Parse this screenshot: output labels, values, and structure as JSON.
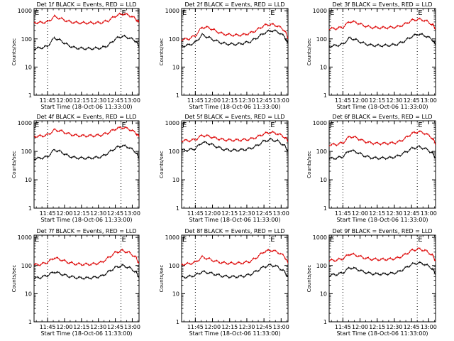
{
  "theme": {
    "events_color": "#000000",
    "lld_color": "#dd0000",
    "background": "#ffffff"
  },
  "common": {
    "xlabel": "Start Time (18-Oct-06 11:33:00)",
    "ylabel": "Counts/sec",
    "x_tick_labels": [
      "11:45",
      "12:00",
      "12:15",
      "12:30",
      "12:45",
      "13:00"
    ],
    "y_tick_labels": [
      "1",
      "10",
      "100",
      "1000"
    ],
    "marker_labels": [
      "E",
      "E"
    ]
  },
  "chart_data": [
    {
      "type": "line",
      "title": "Det 1f BLACK = Events, RED = LLD",
      "xlabel": "Start Time (18-Oct-06 11:33:00)",
      "ylabel": "Counts/sec",
      "x_unit": "minutes after 11:33:00",
      "x": [
        0,
        6,
        12,
        18,
        24,
        30,
        36,
        42,
        48,
        54,
        60,
        66,
        72,
        78,
        84,
        90,
        93
      ],
      "xlim": [
        0,
        93
      ],
      "ylim": [
        1,
        1200
      ],
      "log_y": true,
      "vlines": [
        12,
        77
      ],
      "series": [
        {
          "name": "Events",
          "color": "#000000",
          "values": [
            45,
            48,
            55,
            110,
            85,
            60,
            48,
            46,
            45,
            46,
            48,
            60,
            100,
            125,
            110,
            85,
            55
          ]
        },
        {
          "name": "LLD",
          "color": "#dd0000",
          "values": [
            380,
            380,
            400,
            620,
            520,
            420,
            380,
            370,
            370,
            370,
            380,
            450,
            650,
            780,
            700,
            520,
            380
          ]
        }
      ]
    },
    {
      "type": "line",
      "title": "Det 2f BLACK = Events, RED = LLD",
      "xlabel": "Start Time (18-Oct-06 11:33:00)",
      "ylabel": "Counts/sec",
      "x_unit": "minutes after 11:33:00",
      "x": [
        0,
        6,
        12,
        18,
        24,
        30,
        36,
        42,
        48,
        54,
        60,
        66,
        72,
        78,
        84,
        90,
        93
      ],
      "xlim": [
        0,
        93
      ],
      "ylim": [
        1,
        1200
      ],
      "log_y": true,
      "vlines": [
        12,
        77
      ],
      "series": [
        {
          "name": "Events",
          "color": "#000000",
          "values": [
            55,
            60,
            75,
            140,
            110,
            85,
            70,
            65,
            65,
            70,
            80,
            110,
            160,
            200,
            180,
            120,
            65
          ]
        },
        {
          "name": "LLD",
          "color": "#dd0000",
          "values": [
            95,
            100,
            130,
            260,
            250,
            190,
            150,
            140,
            135,
            140,
            160,
            210,
            300,
            330,
            290,
            200,
            110
          ]
        }
      ]
    },
    {
      "type": "line",
      "title": "Det 3f BLACK = Events, RED = LLD",
      "xlabel": "Start Time (18-Oct-06 11:33:00)",
      "ylabel": "Counts/sec",
      "x_unit": "minutes after 11:33:00",
      "x": [
        0,
        6,
        12,
        18,
        24,
        30,
        36,
        42,
        48,
        54,
        60,
        66,
        72,
        78,
        84,
        90,
        93
      ],
      "xlim": [
        0,
        93
      ],
      "ylim": [
        1,
        1200
      ],
      "log_y": true,
      "vlines": [
        12,
        77
      ],
      "series": [
        {
          "name": "Events",
          "color": "#000000",
          "values": [
            55,
            58,
            65,
            110,
            90,
            70,
            60,
            58,
            58,
            60,
            65,
            85,
            120,
            150,
            130,
            95,
            60
          ]
        },
        {
          "name": "LLD",
          "color": "#dd0000",
          "values": [
            230,
            235,
            260,
            420,
            380,
            300,
            260,
            250,
            250,
            255,
            270,
            330,
            450,
            500,
            450,
            330,
            230
          ]
        }
      ]
    },
    {
      "type": "line",
      "title": "Det 4f BLACK = Events, RED = LLD",
      "xlabel": "Start Time (18-Oct-06 11:33:00)",
      "ylabel": "Counts/sec",
      "x_unit": "minutes after 11:33:00",
      "x": [
        0,
        6,
        12,
        18,
        24,
        30,
        36,
        42,
        48,
        54,
        60,
        66,
        72,
        78,
        84,
        90,
        93
      ],
      "xlim": [
        0,
        93
      ],
      "ylim": [
        1,
        1200
      ],
      "log_y": true,
      "vlines": [
        12,
        77
      ],
      "series": [
        {
          "name": "Events",
          "color": "#000000",
          "values": [
            55,
            58,
            65,
            115,
            95,
            70,
            60,
            58,
            58,
            60,
            65,
            90,
            130,
            160,
            140,
            95,
            60
          ]
        },
        {
          "name": "LLD",
          "color": "#dd0000",
          "values": [
            340,
            345,
            380,
            570,
            520,
            420,
            370,
            355,
            355,
            360,
            380,
            460,
            620,
            700,
            620,
            450,
            330
          ]
        }
      ]
    },
    {
      "type": "line",
      "title": "Det 5f BLACK = Events, RED = LLD",
      "xlabel": "Start Time (18-Oct-06 11:33:00)",
      "ylabel": "Counts/sec",
      "x_unit": "minutes after 11:33:00",
      "x": [
        0,
        6,
        12,
        18,
        24,
        30,
        36,
        42,
        48,
        54,
        60,
        66,
        72,
        78,
        84,
        90,
        93
      ],
      "xlim": [
        0,
        93
      ],
      "ylim": [
        1,
        1200
      ],
      "log_y": true,
      "vlines": [
        12,
        77
      ],
      "series": [
        {
          "name": "Events",
          "color": "#000000",
          "values": [
            110,
            112,
            125,
            210,
            190,
            150,
            120,
            110,
            110,
            115,
            125,
            160,
            230,
            260,
            230,
            160,
            105
          ]
        },
        {
          "name": "LLD",
          "color": "#dd0000",
          "values": [
            240,
            240,
            260,
            370,
            340,
            290,
            260,
            250,
            250,
            255,
            270,
            320,
            420,
            470,
            420,
            320,
            240
          ]
        }
      ]
    },
    {
      "type": "line",
      "title": "Det 6f BLACK = Events, RED = LLD",
      "xlabel": "Start Time (18-Oct-06 11:33:00)",
      "ylabel": "Counts/sec",
      "x_unit": "minutes after 11:33:00",
      "x": [
        0,
        6,
        12,
        18,
        24,
        30,
        36,
        42,
        48,
        54,
        60,
        66,
        72,
        78,
        84,
        90,
        93
      ],
      "xlim": [
        0,
        93
      ],
      "ylim": [
        1,
        1200
      ],
      "log_y": true,
      "vlines": [
        12,
        77
      ],
      "series": [
        {
          "name": "Events",
          "color": "#000000",
          "values": [
            55,
            58,
            65,
            110,
            95,
            72,
            60,
            58,
            58,
            60,
            68,
            90,
            125,
            145,
            125,
            90,
            60
          ]
        },
        {
          "name": "LLD",
          "color": "#dd0000",
          "values": [
            170,
            175,
            200,
            340,
            300,
            230,
            200,
            190,
            190,
            195,
            210,
            280,
            420,
            500,
            430,
            300,
            190
          ]
        }
      ]
    },
    {
      "type": "line",
      "title": "Det 7f BLACK = Events, RED = LLD",
      "xlabel": "Start Time (18-Oct-06 11:33:00)",
      "ylabel": "Counts/sec",
      "x_unit": "minutes after 11:33:00",
      "x": [
        0,
        6,
        12,
        18,
        24,
        30,
        36,
        42,
        48,
        54,
        60,
        66,
        72,
        78,
        84,
        90,
        93
      ],
      "xlim": [
        0,
        93
      ],
      "ylim": [
        1,
        1200
      ],
      "log_y": true,
      "vlines": [
        12,
        77
      ],
      "series": [
        {
          "name": "Events",
          "color": "#000000",
          "values": [
            35,
            38,
            45,
            60,
            50,
            42,
            38,
            36,
            36,
            38,
            42,
            60,
            85,
            100,
            85,
            60,
            40
          ]
        },
        {
          "name": "LLD",
          "color": "#dd0000",
          "values": [
            105,
            110,
            130,
            190,
            160,
            130,
            115,
            110,
            110,
            115,
            130,
            190,
            290,
            340,
            290,
            200,
            120
          ]
        }
      ]
    },
    {
      "type": "line",
      "title": "Det 8f BLACK = Events, RED = LLD",
      "xlabel": "Start Time (18-Oct-06 11:33:00)",
      "ylabel": "Counts/sec",
      "x_unit": "minutes after 11:33:00",
      "x": [
        0,
        6,
        12,
        18,
        24,
        30,
        36,
        42,
        48,
        54,
        60,
        66,
        72,
        78,
        84,
        90,
        93
      ],
      "xlim": [
        0,
        93
      ],
      "ylim": [
        1,
        1200
      ],
      "log_y": true,
      "vlines": [
        12,
        77
      ],
      "series": [
        {
          "name": "Events",
          "color": "#000000",
          "values": [
            38,
            40,
            45,
            60,
            55,
            48,
            42,
            40,
            40,
            42,
            48,
            65,
            90,
            105,
            90,
            60,
            38
          ]
        },
        {
          "name": "LLD",
          "color": "#dd0000",
          "values": [
            110,
            115,
            130,
            200,
            170,
            140,
            125,
            120,
            120,
            125,
            140,
            200,
            310,
            350,
            300,
            210,
            120
          ]
        }
      ]
    },
    {
      "type": "line",
      "title": "Det 9f BLACK = Events, RED = LLD",
      "xlabel": "Start Time (18-Oct-06 11:33:00)",
      "ylabel": "Counts/sec",
      "x_unit": "minutes after 11:33:00",
      "x": [
        0,
        6,
        12,
        18,
        24,
        30,
        36,
        42,
        48,
        54,
        60,
        66,
        72,
        78,
        84,
        90,
        93
      ],
      "xlim": [
        0,
        93
      ],
      "ylim": [
        1,
        1200
      ],
      "log_y": true,
      "vlines": [
        12,
        77
      ],
      "series": [
        {
          "name": "Events",
          "color": "#000000",
          "values": [
            45,
            48,
            55,
            85,
            75,
            60,
            52,
            50,
            50,
            52,
            58,
            78,
            110,
            125,
            110,
            80,
            50
          ]
        },
        {
          "name": "LLD",
          "color": "#dd0000",
          "values": [
            150,
            155,
            175,
            260,
            230,
            190,
            170,
            165,
            165,
            170,
            185,
            240,
            340,
            390,
            340,
            240,
            150
          ]
        }
      ]
    }
  ]
}
